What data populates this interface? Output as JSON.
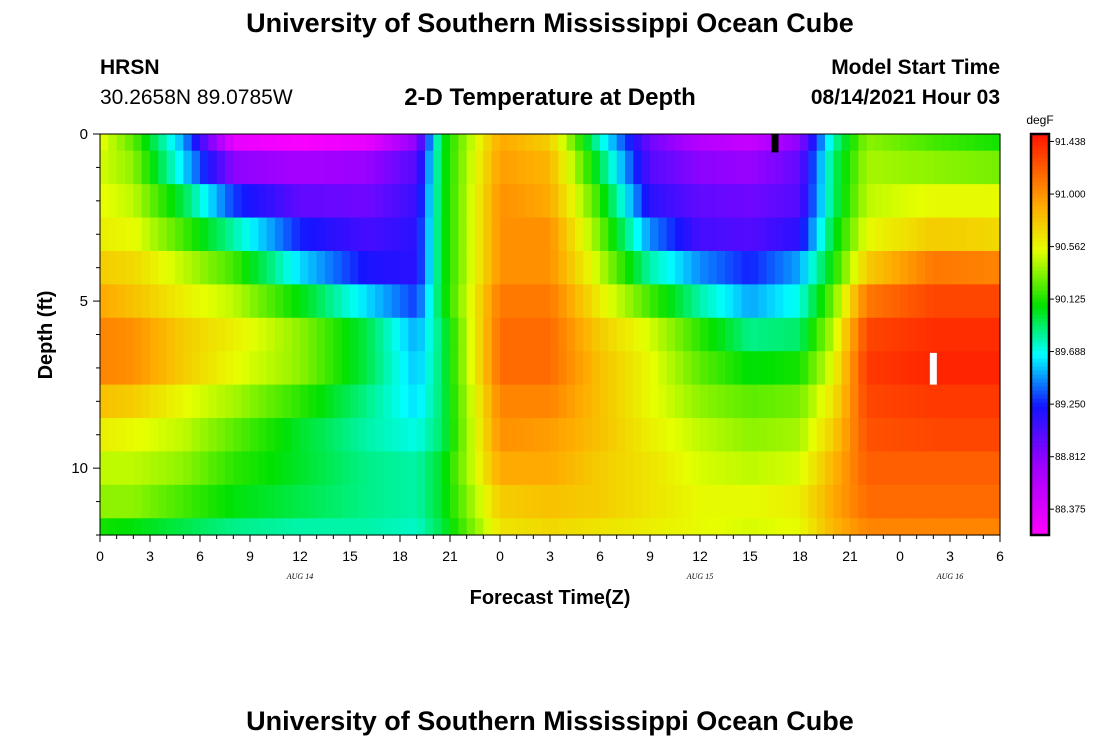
{
  "header": {
    "title": "University of Southern Mississippi Ocean Cube",
    "footer_title": "University of Southern Mississippi Ocean Cube",
    "station_name": "HRSN",
    "station_coords": "30.2658N  89.0785W",
    "chart_title": "2-D Temperature at Depth",
    "model_start_label": "Model Start Time",
    "model_start_value": "08/14/2021 Hour 03"
  },
  "chart_data": {
    "type": "heatmap",
    "title": "2-D Temperature at Depth",
    "xlabel": "Forecast Time(Z)",
    "ylabel": "Depth (ft)",
    "x_tick_labels": [
      "0",
      "3",
      "6",
      "9",
      "12",
      "15",
      "18",
      "21",
      "0",
      "3",
      "6",
      "9",
      "12",
      "15",
      "18",
      "21",
      "0",
      "3",
      "6"
    ],
    "x_hours": [
      0,
      3,
      6,
      9,
      12,
      15,
      18,
      21,
      24,
      27,
      30,
      33,
      36,
      39,
      42,
      45,
      48,
      51,
      54
    ],
    "day_labels": [
      {
        "text": "AUG 14",
        "hour": 12
      },
      {
        "text": "AUG 15",
        "hour": 36
      },
      {
        "text": "AUG 16",
        "hour": 51
      }
    ],
    "y_tick_labels": [
      "0",
      "5",
      "10"
    ],
    "y_ticks": [
      0,
      5,
      10
    ],
    "ylim": [
      0,
      12
    ],
    "xlim": [
      0,
      54
    ],
    "colorbar": {
      "unit": "degF",
      "labels": [
        "91.438",
        "91.000",
        "90.562",
        "90.125",
        "89.688",
        "89.250",
        "88.812",
        "88.375"
      ],
      "min": 88.16,
      "max": 91.5
    },
    "depth_layers_ft": [
      0,
      1,
      2,
      3,
      4,
      5,
      6,
      7,
      8,
      9,
      10,
      11,
      12
    ],
    "temperature_keyframes": {
      "hours": [
        0,
        2,
        5,
        8,
        12,
        16,
        19,
        20.5,
        24,
        27,
        30,
        33,
        36,
        39,
        42,
        44,
        46,
        50,
        54
      ],
      "rows": [
        [
          90.55,
          90.25,
          89.5,
          88.3,
          88.2,
          88.3,
          88.8,
          90.0,
          90.9,
          90.75,
          89.75,
          88.9,
          88.6,
          88.5,
          88.8,
          89.8,
          90.35,
          90.2,
          90.1
        ],
        [
          90.5,
          90.35,
          89.6,
          88.8,
          88.7,
          88.75,
          89.0,
          90.0,
          90.95,
          90.85,
          89.95,
          89.0,
          88.8,
          88.75,
          88.95,
          89.9,
          90.4,
          90.35,
          90.3
        ],
        [
          90.55,
          90.45,
          89.95,
          89.3,
          88.95,
          88.9,
          89.1,
          90.0,
          91.0,
          90.9,
          90.15,
          89.15,
          88.95,
          88.9,
          89.0,
          89.9,
          90.45,
          90.55,
          90.55
        ],
        [
          90.6,
          90.55,
          90.2,
          89.8,
          89.25,
          89.05,
          89.15,
          90.0,
          91.0,
          91.0,
          90.3,
          89.45,
          89.05,
          89.0,
          89.15,
          90.0,
          90.55,
          90.75,
          90.7
        ],
        [
          90.75,
          90.7,
          90.45,
          90.2,
          89.6,
          89.2,
          89.15,
          90.0,
          91.0,
          91.0,
          90.45,
          89.8,
          89.45,
          89.25,
          89.5,
          90.1,
          90.75,
          91.1,
          91.05
        ],
        [
          90.9,
          90.8,
          90.6,
          90.45,
          90.05,
          89.6,
          89.3,
          90.0,
          91.1,
          91.1,
          90.6,
          90.2,
          89.8,
          89.5,
          89.7,
          90.3,
          91.1,
          91.3,
          91.3
        ],
        [
          91.05,
          91.0,
          90.75,
          90.6,
          90.35,
          89.95,
          89.5,
          89.9,
          91.15,
          91.15,
          90.75,
          90.5,
          90.15,
          89.85,
          89.9,
          90.45,
          91.3,
          91.4,
          91.4
        ],
        [
          91.05,
          91.0,
          90.75,
          90.55,
          90.35,
          89.95,
          89.55,
          89.9,
          91.15,
          91.15,
          90.8,
          90.55,
          90.25,
          90.05,
          90.1,
          90.55,
          91.35,
          91.43,
          91.43
        ],
        [
          90.8,
          90.75,
          90.55,
          90.4,
          90.15,
          89.85,
          89.6,
          89.9,
          91.05,
          91.05,
          90.8,
          90.55,
          90.35,
          90.25,
          90.3,
          90.65,
          91.3,
          91.35,
          91.35
        ],
        [
          90.6,
          90.55,
          90.45,
          90.25,
          90.0,
          89.8,
          89.7,
          89.9,
          91.0,
          90.95,
          90.8,
          90.6,
          90.45,
          90.35,
          90.4,
          90.75,
          91.25,
          91.3,
          91.3
        ],
        [
          90.45,
          90.45,
          90.35,
          90.15,
          90.0,
          89.85,
          89.8,
          90.0,
          90.9,
          90.9,
          90.75,
          90.65,
          90.5,
          90.45,
          90.5,
          90.85,
          91.2,
          91.2,
          91.2
        ],
        [
          90.35,
          90.35,
          90.2,
          90.05,
          89.95,
          89.85,
          89.8,
          90.0,
          90.75,
          90.8,
          90.75,
          90.65,
          90.55,
          90.55,
          90.6,
          90.9,
          91.15,
          91.15,
          91.15
        ],
        [
          90.1,
          90.05,
          89.95,
          89.85,
          89.8,
          89.8,
          89.75,
          89.95,
          90.65,
          90.7,
          90.65,
          90.6,
          90.55,
          90.5,
          90.55,
          90.85,
          91.05,
          91.05,
          91.05
        ]
      ]
    },
    "markers": [
      {
        "name": "current-time-marker",
        "hour": 40.5,
        "depth_from": 0,
        "depth_to": 0.55,
        "color": "#000000"
      },
      {
        "name": "max-value-marker",
        "hour": 50,
        "depth_from": 6.55,
        "depth_to": 7.5,
        "color": "#ffffff"
      }
    ]
  }
}
